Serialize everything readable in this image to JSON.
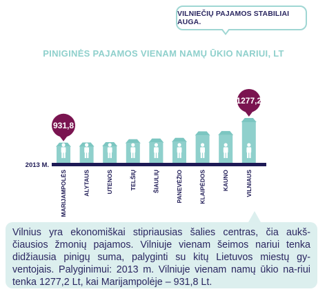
{
  "callout": {
    "text": "VILNIEČIŲ PAJAMOS STABILIAI AUGA."
  },
  "chart_data": {
    "type": "bar",
    "title": "PINIGINĖS PAJAMOS VIENAM NAMŲ ŪKIO NARIUI, LT",
    "year_label": "2013 M.",
    "categories": [
      "MARIJAMPOLĖS",
      "ALYTAUS",
      "UTENOS",
      "TELŠIŲ",
      "ŠIAULIŲ",
      "PANEVĖŽIO",
      "KLAIPĖDOS",
      "KAUNO",
      "VILNIAUS"
    ],
    "values": [
      931.8,
      935,
      940,
      980,
      990,
      1000,
      1090,
      1095,
      1277.2
    ],
    "value_labels": [
      "931,8",
      "",
      "",
      "",
      "",
      "",
      "",
      "",
      "1277,2"
    ],
    "ylim": [
      650,
      1277.2
    ],
    "colors": {
      "bar": "#8fd0cc",
      "roof": "#7cc6c1",
      "marker": "#7a1450",
      "axis": "#1e1a55"
    }
  },
  "description": {
    "text": "Vilnius yra ekonomiškai stipriausias šalies centras, čia aukš-čiausios žmonių pajamos. Vilniuje vienam šeimos nariui tenka didžiausia pinigų suma, palyginti su kitų Lietuvos miestų gy-ventojais. Palyginimui: 2013 m. Vilniuje vienam namų ūkio na-riui tenka 1277,2 Lt, kai Marijampolėje – 931,8 Lt."
  }
}
